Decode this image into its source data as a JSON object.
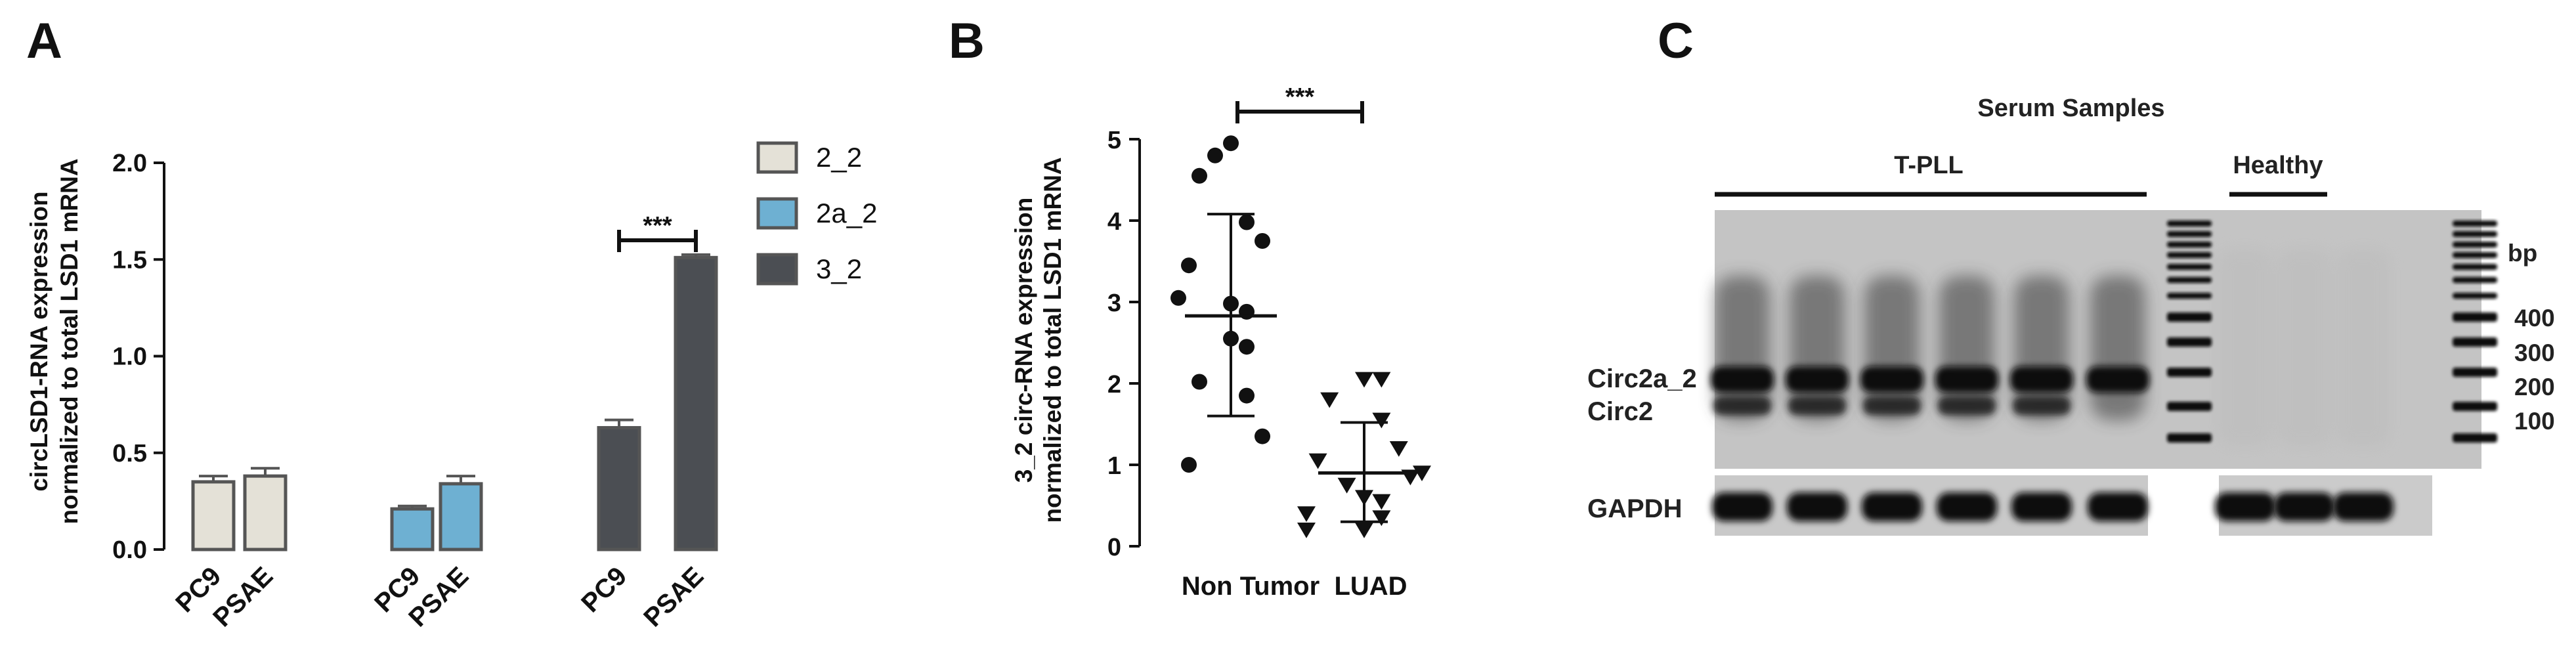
{
  "panels": {
    "a": "A",
    "b": "B",
    "c": "C"
  },
  "chart_data": [
    {
      "panel": "A",
      "type": "bar",
      "ylabel_line1": "circLSD1-RNA expression",
      "ylabel_line2": "normalized to total LSD1 mRNA",
      "ylim": [
        0,
        2.0
      ],
      "yticks": [
        "0.0",
        "0.5",
        "1.0",
        "1.5",
        "2.0"
      ],
      "groups": [
        {
          "series": "2_2",
          "categories": [
            "PC9",
            "PSAE"
          ],
          "values": [
            0.35,
            0.38
          ],
          "errors": [
            0.03,
            0.04
          ]
        },
        {
          "series": "2a_2",
          "categories": [
            "PC9",
            "PSAE"
          ],
          "values": [
            0.21,
            0.34
          ],
          "errors": [
            0.015,
            0.04
          ]
        },
        {
          "series": "3_2",
          "categories": [
            "PC9",
            "PSAE"
          ],
          "values": [
            0.63,
            1.51
          ],
          "errors": [
            0.04,
            0.015
          ]
        }
      ],
      "legend": [
        {
          "name": "2_2",
          "color": "#e4e1d7"
        },
        {
          "name": "2a_2",
          "color": "#6eb0d2"
        },
        {
          "name": "3_2",
          "color": "#4b4e53"
        }
      ],
      "significance": {
        "label": "***",
        "group": 2
      }
    },
    {
      "panel": "B",
      "type": "scatter",
      "ylabel_line1": "3_2 circ-RNA expression",
      "ylabel_line2": "normalized to total LSD1 mRNA",
      "ylim": [
        0,
        5
      ],
      "yticks": [
        "0",
        "1",
        "2",
        "3",
        "4",
        "5"
      ],
      "categories": [
        "Non Tumor",
        "LUAD"
      ],
      "series": [
        {
          "name": "Non Tumor",
          "marker": "circle",
          "mean": 2.83,
          "sd_upper": 4.08,
          "sd_lower": 1.6,
          "values": [
            4.95,
            4.8,
            4.55,
            3.98,
            3.75,
            3.45,
            3.05,
            2.98,
            2.88,
            2.55,
            2.45,
            2.02,
            1.85,
            1.35,
            1.0
          ]
        },
        {
          "name": "LUAD",
          "marker": "triangle-down",
          "mean": 0.9,
          "sd_upper": 1.52,
          "sd_lower": 0.3,
          "values": [
            2.05,
            2.05,
            1.8,
            1.55,
            1.2,
            1.05,
            0.9,
            0.85,
            0.75,
            0.6,
            0.55,
            0.4,
            0.35,
            0.2,
            0.2
          ]
        }
      ],
      "significance": {
        "label": "***"
      }
    }
  ],
  "gel": {
    "title": "Serum Samples",
    "group1": "T-PLL",
    "group2": "Healthy",
    "band_upper": "Circ2a_2",
    "band_lower": "Circ2",
    "loading_control": "GAPDH",
    "bp_unit": "bp",
    "bp_markers": [
      "400",
      "300",
      "200",
      "100"
    ]
  }
}
